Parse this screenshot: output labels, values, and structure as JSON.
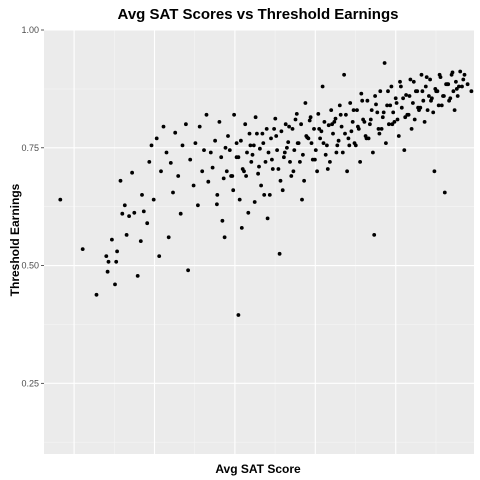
{
  "chart_data": {
    "type": "scatter",
    "title": "Avg SAT Scores vs Threshold Earnings",
    "xlabel": "Avg SAT Score",
    "ylabel": "Threshold Earnings",
    "xlim": [
      0,
      1
    ],
    "ylim": [
      0.1,
      1.0
    ],
    "x_tick_labels": [],
    "y_ticks": [
      0.25,
      0.5,
      0.75,
      1.0
    ],
    "y_tick_labels": [
      "0.25",
      "0.50",
      "0.75",
      "1.00"
    ],
    "grid": true,
    "legend": "none",
    "point_color": "#000000",
    "panel_color": "#ebebeb",
    "x": [
      0.038,
      0.09,
      0.122,
      0.145,
      0.148,
      0.15,
      0.158,
      0.165,
      0.168,
      0.17,
      0.178,
      0.182,
      0.188,
      0.192,
      0.198,
      0.205,
      0.21,
      0.218,
      0.225,
      0.228,
      0.232,
      0.24,
      0.245,
      0.25,
      0.255,
      0.262,
      0.268,
      0.272,
      0.278,
      0.285,
      0.29,
      0.295,
      0.3,
      0.305,
      0.312,
      0.318,
      0.322,
      0.33,
      0.335,
      0.34,
      0.348,
      0.352,
      0.358,
      0.362,
      0.368,
      0.372,
      0.378,
      0.382,
      0.388,
      0.392,
      0.398,
      0.402,
      0.408,
      0.412,
      0.418,
      0.422,
      0.428,
      0.432,
      0.438,
      0.442,
      0.448,
      0.452,
      0.458,
      0.462,
      0.468,
      0.472,
      0.478,
      0.482,
      0.488,
      0.492,
      0.498,
      0.502,
      0.508,
      0.512,
      0.518,
      0.522,
      0.528,
      0.532,
      0.538,
      0.542,
      0.548,
      0.552,
      0.558,
      0.562,
      0.568,
      0.572,
      0.578,
      0.582,
      0.588,
      0.592,
      0.598,
      0.602,
      0.608,
      0.612,
      0.618,
      0.622,
      0.628,
      0.632,
      0.638,
      0.642,
      0.648,
      0.652,
      0.658,
      0.662,
      0.668,
      0.672,
      0.678,
      0.682,
      0.688,
      0.692,
      0.698,
      0.702,
      0.708,
      0.712,
      0.718,
      0.722,
      0.728,
      0.732,
      0.738,
      0.742,
      0.748,
      0.752,
      0.758,
      0.762,
      0.768,
      0.772,
      0.778,
      0.782,
      0.788,
      0.792,
      0.798,
      0.802,
      0.808,
      0.812,
      0.818,
      0.822,
      0.828,
      0.832,
      0.838,
      0.842,
      0.848,
      0.852,
      0.858,
      0.862,
      0.868,
      0.872,
      0.878,
      0.882,
      0.888,
      0.892,
      0.898,
      0.902,
      0.908,
      0.912,
      0.918,
      0.922,
      0.928,
      0.932,
      0.938,
      0.942,
      0.948,
      0.952,
      0.958,
      0.962,
      0.968,
      0.972,
      0.978,
      0.985,
      0.994,
      0.42,
      0.435,
      0.448,
      0.455,
      0.465,
      0.475,
      0.485,
      0.495,
      0.505,
      0.515,
      0.525,
      0.535,
      0.545,
      0.555,
      0.565,
      0.575,
      0.585,
      0.595,
      0.605,
      0.615,
      0.625,
      0.635,
      0.645,
      0.655,
      0.665,
      0.675,
      0.685,
      0.695,
      0.705,
      0.715,
      0.725,
      0.735,
      0.745,
      0.755,
      0.765,
      0.775,
      0.785,
      0.795,
      0.805,
      0.815,
      0.825,
      0.835,
      0.845,
      0.855,
      0.865,
      0.875,
      0.885,
      0.895,
      0.905,
      0.915,
      0.925,
      0.935,
      0.945,
      0.955,
      0.965,
      0.975,
      0.403,
      0.415,
      0.425,
      0.44,
      0.452,
      0.46,
      0.47,
      0.48,
      0.49,
      0.5,
      0.51,
      0.52,
      0.53,
      0.54,
      0.55,
      0.56,
      0.57,
      0.58,
      0.59,
      0.6,
      0.61,
      0.62,
      0.63,
      0.64,
      0.65,
      0.66,
      0.67,
      0.68,
      0.69,
      0.7,
      0.71,
      0.72,
      0.73,
      0.74,
      0.75,
      0.76,
      0.77,
      0.78,
      0.79,
      0.8,
      0.81,
      0.82,
      0.83,
      0.84,
      0.85,
      0.86,
      0.87,
      0.88,
      0.89,
      0.9,
      0.91,
      0.92,
      0.93,
      0.94,
      0.95,
      0.96
    ],
    "y": [
      0.64,
      0.535,
      0.438,
      0.52,
      0.487,
      0.508,
      0.555,
      0.46,
      0.508,
      0.53,
      0.68,
      0.61,
      0.628,
      0.565,
      0.605,
      0.697,
      0.612,
      0.478,
      0.552,
      0.65,
      0.615,
      0.59,
      0.72,
      0.755,
      0.64,
      0.77,
      0.52,
      0.7,
      0.795,
      0.74,
      0.56,
      0.718,
      0.655,
      0.782,
      0.69,
      0.61,
      0.755,
      0.8,
      0.49,
      0.725,
      0.67,
      0.76,
      0.628,
      0.795,
      0.7,
      0.745,
      0.82,
      0.678,
      0.74,
      0.708,
      0.765,
      0.63,
      0.805,
      0.73,
      0.685,
      0.75,
      0.775,
      0.745,
      0.69,
      0.82,
      0.73,
      0.395,
      0.765,
      0.705,
      0.8,
      0.74,
      0.78,
      0.72,
      0.755,
      0.815,
      0.695,
      0.748,
      0.78,
      0.65,
      0.79,
      0.74,
      0.77,
      0.705,
      0.812,
      0.745,
      0.525,
      0.785,
      0.73,
      0.8,
      0.762,
      0.72,
      0.79,
      0.745,
      0.822,
      0.76,
      0.8,
      0.735,
      0.845,
      0.772,
      0.808,
      0.76,
      0.79,
      0.745,
      0.822,
      0.77,
      0.88,
      0.805,
      0.755,
      0.798,
      0.83,
      0.78,
      0.812,
      0.755,
      0.84,
      0.795,
      0.905,
      0.82,
      0.77,
      0.845,
      0.805,
      0.76,
      0.83,
      0.79,
      0.865,
      0.81,
      0.775,
      0.85,
      0.8,
      0.83,
      0.565,
      0.842,
      0.79,
      0.87,
      0.815,
      0.93,
      0.84,
      0.8,
      0.88,
      0.825,
      0.855,
      0.81,
      0.89,
      0.835,
      0.745,
      0.862,
      0.82,
      0.895,
      0.845,
      0.81,
      0.87,
      0.83,
      0.905,
      0.85,
      0.88,
      0.83,
      0.895,
      0.855,
      0.7,
      0.87,
      0.84,
      0.9,
      0.86,
      0.655,
      0.885,
      0.85,
      0.905,
      0.87,
      0.89,
      0.86,
      0.912,
      0.88,
      0.905,
      0.885,
      0.87,
      0.56,
      0.69,
      0.76,
      0.64,
      0.7,
      0.612,
      0.735,
      0.78,
      0.67,
      0.72,
      0.65,
      0.79,
      0.705,
      0.66,
      0.75,
      0.69,
      0.81,
      0.72,
      0.68,
      0.77,
      0.725,
      0.7,
      0.785,
      0.735,
      0.72,
      0.805,
      0.765,
      0.74,
      0.7,
      0.785,
      0.755,
      0.72,
      0.805,
      0.77,
      0.74,
      0.825,
      0.79,
      0.76,
      0.84,
      0.805,
      0.775,
      0.855,
      0.82,
      0.79,
      0.87,
      0.835,
      0.805,
      0.86,
      0.825,
      0.87,
      0.84,
      0.885,
      0.855,
      0.83,
      0.88,
      0.895,
      0.65,
      0.595,
      0.7,
      0.66,
      0.73,
      0.58,
      0.69,
      0.755,
      0.635,
      0.71,
      0.76,
      0.6,
      0.725,
      0.775,
      0.68,
      0.74,
      0.795,
      0.7,
      0.76,
      0.64,
      0.775,
      0.815,
      0.725,
      0.79,
      0.76,
      0.705,
      0.8,
      0.74,
      0.82,
      0.78,
      0.755,
      0.83,
      0.795,
      0.85,
      0.77,
      0.81,
      0.86,
      0.78,
      0.825,
      0.87,
      0.8,
      0.845,
      0.88,
      0.815,
      0.86,
      0.89,
      0.835,
      0.87,
      0.9,
      0.85,
      0.875,
      0.905,
      0.86,
      0.885,
      0.91,
      0.875
    ]
  }
}
